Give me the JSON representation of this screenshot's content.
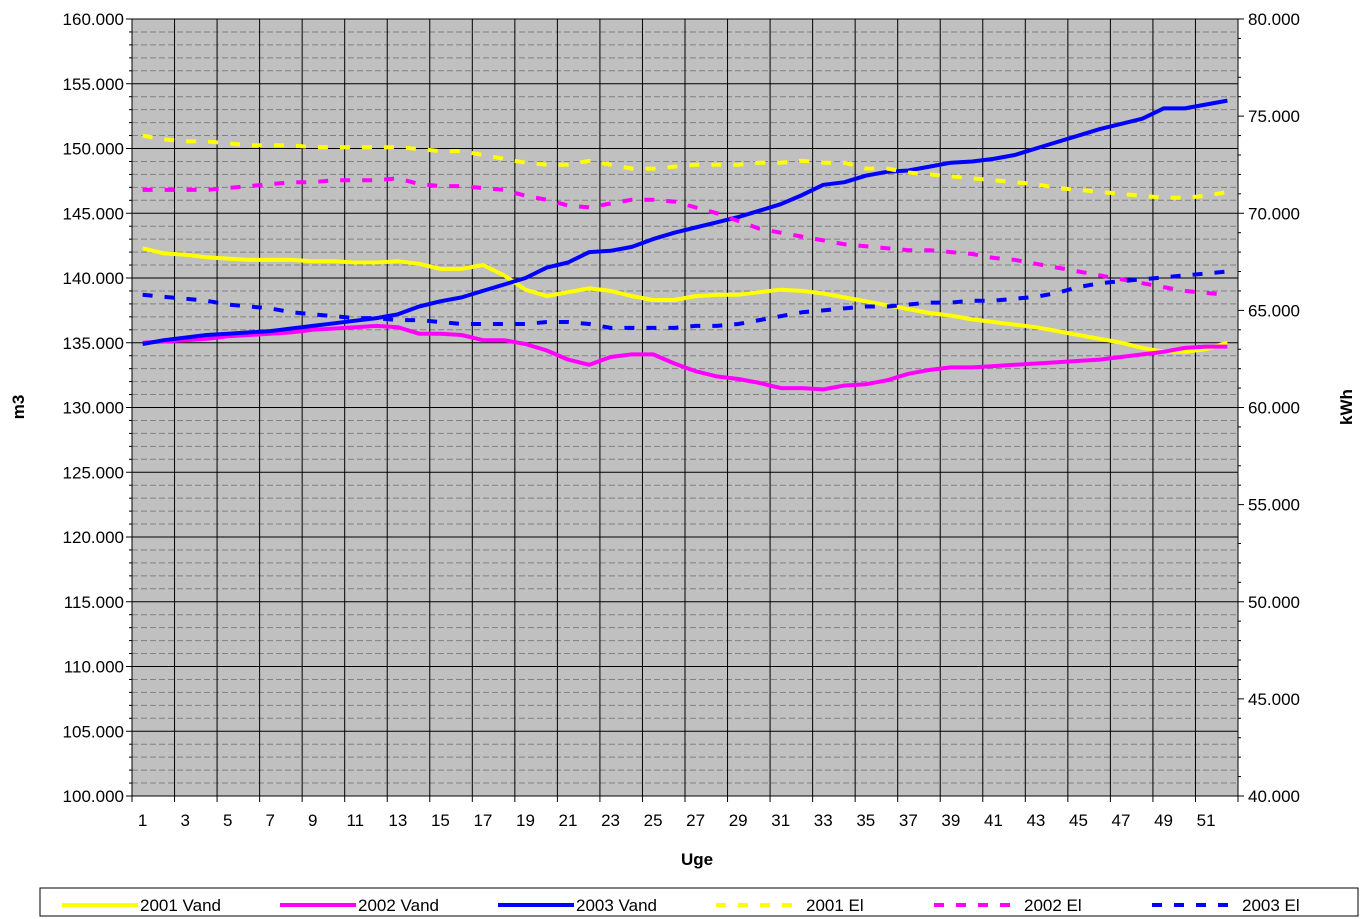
{
  "chart_data": {
    "type": "line",
    "title": "",
    "xlabel": "Uge",
    "ylabel_left": "m3",
    "ylabel_right": "kWh",
    "x": [
      1,
      2,
      3,
      4,
      5,
      6,
      7,
      8,
      9,
      10,
      11,
      12,
      13,
      14,
      15,
      16,
      17,
      18,
      19,
      20,
      21,
      22,
      23,
      24,
      25,
      26,
      27,
      28,
      29,
      30,
      31,
      32,
      33,
      34,
      35,
      36,
      37,
      38,
      39,
      40,
      41,
      42,
      43,
      44,
      45,
      46,
      47,
      48,
      49,
      50,
      51,
      52
    ],
    "x_tick_labels": [
      "1",
      "3",
      "5",
      "7",
      "9",
      "11",
      "13",
      "15",
      "17",
      "19",
      "21",
      "23",
      "25",
      "27",
      "29",
      "31",
      "33",
      "35",
      "37",
      "39",
      "41",
      "43",
      "45",
      "47",
      "49",
      "51"
    ],
    "ylim_left": [
      100000,
      160000
    ],
    "ylim_right": [
      40000,
      80000
    ],
    "y_tick_labels_left": [
      "100.000",
      "105.000",
      "110.000",
      "115.000",
      "120.000",
      "125.000",
      "130.000",
      "135.000",
      "140.000",
      "145.000",
      "150.000",
      "155.000",
      "160.000"
    ],
    "y_tick_labels_right": [
      "40.000",
      "45.000",
      "50.000",
      "55.000",
      "60.000",
      "65.000",
      "70.000",
      "75.000",
      "80.000"
    ],
    "grid": true,
    "plot_background": "#C0C0C0",
    "legend_position": "bottom",
    "series": [
      {
        "name": "2001 Vand",
        "axis": "left",
        "style": "solid",
        "color": "#FFFF00",
        "values": [
          142300,
          141900,
          141800,
          141600,
          141500,
          141400,
          141400,
          141400,
          141300,
          141300,
          141200,
          141200,
          141300,
          141100,
          140700,
          140700,
          141000,
          140200,
          139100,
          138600,
          138900,
          139200,
          139000,
          138600,
          138300,
          138300,
          138600,
          138700,
          138700,
          138900,
          139100,
          139000,
          138800,
          138500,
          138200,
          137900,
          137600,
          137300,
          137100,
          136800,
          136600,
          136400,
          136200,
          135900,
          135600,
          135300,
          135000,
          134600,
          134300,
          134300,
          134500,
          135000
        ]
      },
      {
        "name": "2002 Vand",
        "axis": "left",
        "style": "solid",
        "color": "#FF00FF",
        "values": [
          135000,
          135100,
          135200,
          135300,
          135500,
          135600,
          135700,
          135800,
          136000,
          136100,
          136200,
          136300,
          136200,
          135700,
          135700,
          135600,
          135200,
          135200,
          134900,
          134400,
          133700,
          133300,
          133900,
          134100,
          134100,
          133400,
          132800,
          132400,
          132200,
          131900,
          131500,
          131500,
          131400,
          131700,
          131800,
          132100,
          132600,
          132900,
          133100,
          133100,
          133200,
          133300,
          133400,
          133500,
          133600,
          133700,
          133900,
          134100,
          134300,
          134600,
          134700,
          134700
        ]
      },
      {
        "name": "2003 Vand",
        "axis": "left",
        "style": "solid",
        "color": "#0000FF",
        "values": [
          134900,
          135200,
          135400,
          135600,
          135700,
          135800,
          135900,
          136100,
          136300,
          136500,
          136700,
          136900,
          137200,
          137800,
          138200,
          138500,
          139000,
          139500,
          140000,
          140800,
          141200,
          142000,
          142100,
          142400,
          143000,
          143500,
          143900,
          144300,
          144700,
          145200,
          145700,
          146400,
          147200,
          147400,
          147900,
          148200,
          148300,
          148600,
          148900,
          149000,
          149200,
          149500,
          150000,
          150500,
          151000,
          151500,
          151900,
          152300,
          153100,
          153100,
          153400,
          153700
        ]
      },
      {
        "name": "2001 El",
        "axis": "right",
        "style": "dashed",
        "color": "#FFFF00",
        "values": [
          74000,
          73800,
          73700,
          73700,
          73600,
          73500,
          73500,
          73500,
          73400,
          73400,
          73400,
          73400,
          73400,
          73300,
          73200,
          73200,
          73000,
          72800,
          72600,
          72500,
          72500,
          72700,
          72500,
          72300,
          72300,
          72400,
          72500,
          72500,
          72500,
          72600,
          72600,
          72700,
          72600,
          72600,
          72300,
          72300,
          72100,
          72000,
          71900,
          71800,
          71700,
          71600,
          71500,
          71300,
          71200,
          71100,
          71000,
          70900,
          70800,
          70800,
          70900,
          71100
        ]
      },
      {
        "name": "2002 El",
        "axis": "right",
        "style": "dashed",
        "color": "#FF00FF",
        "values": [
          71200,
          71200,
          71200,
          71200,
          71300,
          71400,
          71500,
          71600,
          71600,
          71700,
          71700,
          71700,
          71800,
          71500,
          71400,
          71400,
          71300,
          71200,
          70900,
          70700,
          70400,
          70300,
          70500,
          70700,
          70700,
          70600,
          70300,
          70000,
          69600,
          69200,
          69000,
          68800,
          68600,
          68400,
          68300,
          68200,
          68100,
          68100,
          68000,
          67900,
          67700,
          67600,
          67400,
          67200,
          67000,
          66800,
          66600,
          66400,
          66200,
          66000,
          65900,
          65800
        ]
      },
      {
        "name": "2003 El",
        "axis": "right",
        "style": "dashed",
        "color": "#0000FF",
        "values": [
          65800,
          65700,
          65600,
          65500,
          65300,
          65200,
          65100,
          64900,
          64800,
          64700,
          64600,
          64600,
          64500,
          64500,
          64400,
          64300,
          64300,
          64300,
          64300,
          64400,
          64400,
          64300,
          64100,
          64100,
          64100,
          64100,
          64200,
          64200,
          64300,
          64500,
          64700,
          64900,
          65000,
          65100,
          65200,
          65200,
          65300,
          65400,
          65400,
          65500,
          65500,
          65600,
          65700,
          65900,
          66200,
          66400,
          66500,
          66600,
          66700,
          66800,
          66900,
          67000
        ]
      }
    ]
  }
}
